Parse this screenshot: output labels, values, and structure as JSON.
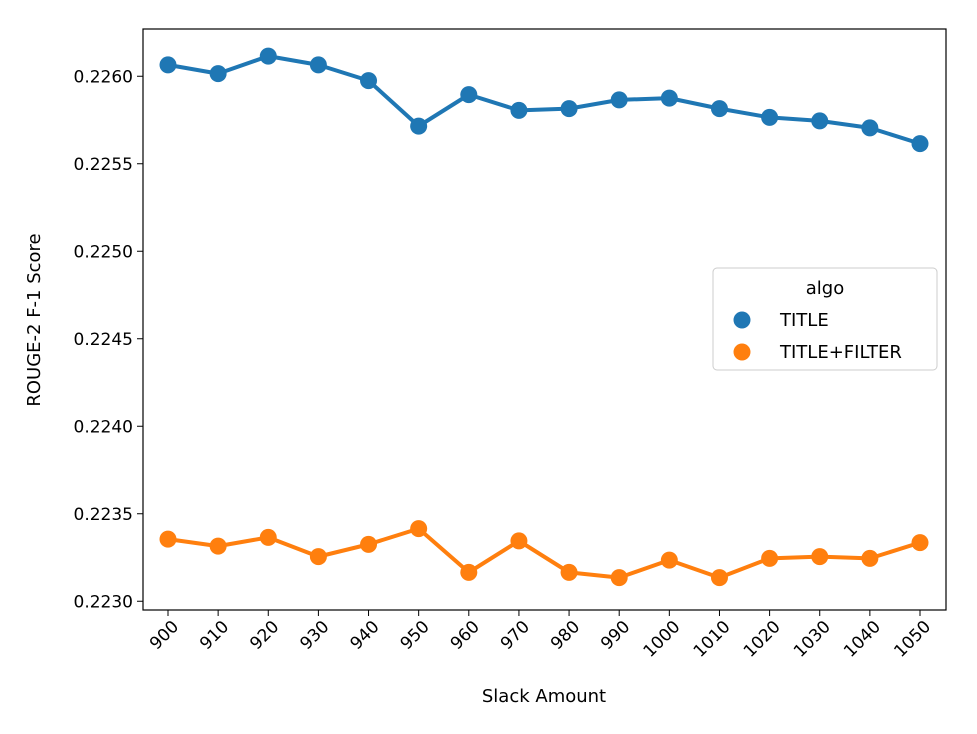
{
  "chart_data": {
    "type": "line",
    "xlabel": "Slack Amount",
    "ylabel": "ROUGE-2 F-1 Score",
    "categories": [
      "900",
      "910",
      "920",
      "930",
      "940",
      "950",
      "960",
      "970",
      "980",
      "990",
      "1000",
      "1010",
      "1020",
      "1030",
      "1040",
      "1050"
    ],
    "ylim": [
      0.22295,
      0.22627
    ],
    "yticks": [
      "0.2230",
      "0.2235",
      "0.2240",
      "0.2245",
      "0.2250",
      "0.2255",
      "0.2260"
    ],
    "grid": false,
    "legend": {
      "title": "algo",
      "placement": "center-right"
    },
    "series": [
      {
        "name": "TITLE",
        "color": "#1f77b4",
        "values": [
          0.226065,
          0.226015,
          0.226115,
          0.226065,
          0.225975,
          0.225715,
          0.225895,
          0.225805,
          0.225815,
          0.225865,
          0.225875,
          0.225815,
          0.225765,
          0.225745,
          0.225705,
          0.225615
        ]
      },
      {
        "name": "TITLE+FILTER",
        "color": "#ff7f0e",
        "values": [
          0.223355,
          0.223315,
          0.223365,
          0.223255,
          0.223325,
          0.223415,
          0.223165,
          0.223345,
          0.223165,
          0.223135,
          0.223235,
          0.223135,
          0.223245,
          0.223255,
          0.223245,
          0.223335
        ]
      }
    ]
  }
}
